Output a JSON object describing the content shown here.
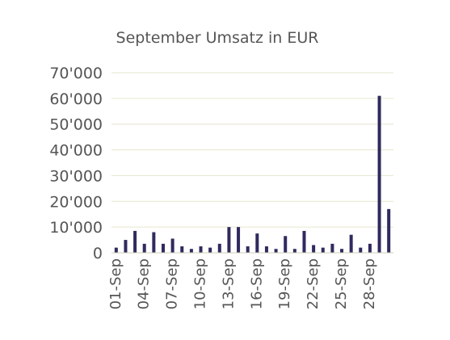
{
  "chart_data": {
    "type": "bar",
    "title": "September Umsatz in EUR",
    "xlabel": "",
    "ylabel": "",
    "ylim": [
      0,
      70000
    ],
    "yticks": [
      0,
      10000,
      20000,
      30000,
      40000,
      50000,
      60000,
      70000
    ],
    "ytick_labels": [
      "0",
      "10'000",
      "20'000",
      "30'000",
      "40'000",
      "50'000",
      "60'000",
      "70'000"
    ],
    "xtick_labels": [
      "01-Sep",
      "04-Sep",
      "07-Sep",
      "10-Sep",
      "13-Sep",
      "16-Sep",
      "19-Sep",
      "22-Sep",
      "25-Sep",
      "28-Sep"
    ],
    "categories": [
      "01-Sep",
      "02-Sep",
      "03-Sep",
      "04-Sep",
      "05-Sep",
      "06-Sep",
      "07-Sep",
      "08-Sep",
      "09-Sep",
      "10-Sep",
      "11-Sep",
      "12-Sep",
      "13-Sep",
      "14-Sep",
      "15-Sep",
      "16-Sep",
      "17-Sep",
      "18-Sep",
      "19-Sep",
      "20-Sep",
      "21-Sep",
      "22-Sep",
      "23-Sep",
      "24-Sep",
      "25-Sep",
      "26-Sep",
      "27-Sep",
      "28-Sep",
      "29-Sep",
      "30-Sep"
    ],
    "values": [
      2000,
      5000,
      8500,
      3500,
      8000,
      3500,
      5500,
      2500,
      1500,
      2500,
      2000,
      3500,
      10000,
      10000,
      2500,
      7500,
      2500,
      1500,
      6500,
      1500,
      8500,
      3000,
      2000,
      3500,
      1500,
      7000,
      2000,
      3500,
      61000,
      17000
    ],
    "bar_color": "#2f2a5e",
    "grid": true
  }
}
